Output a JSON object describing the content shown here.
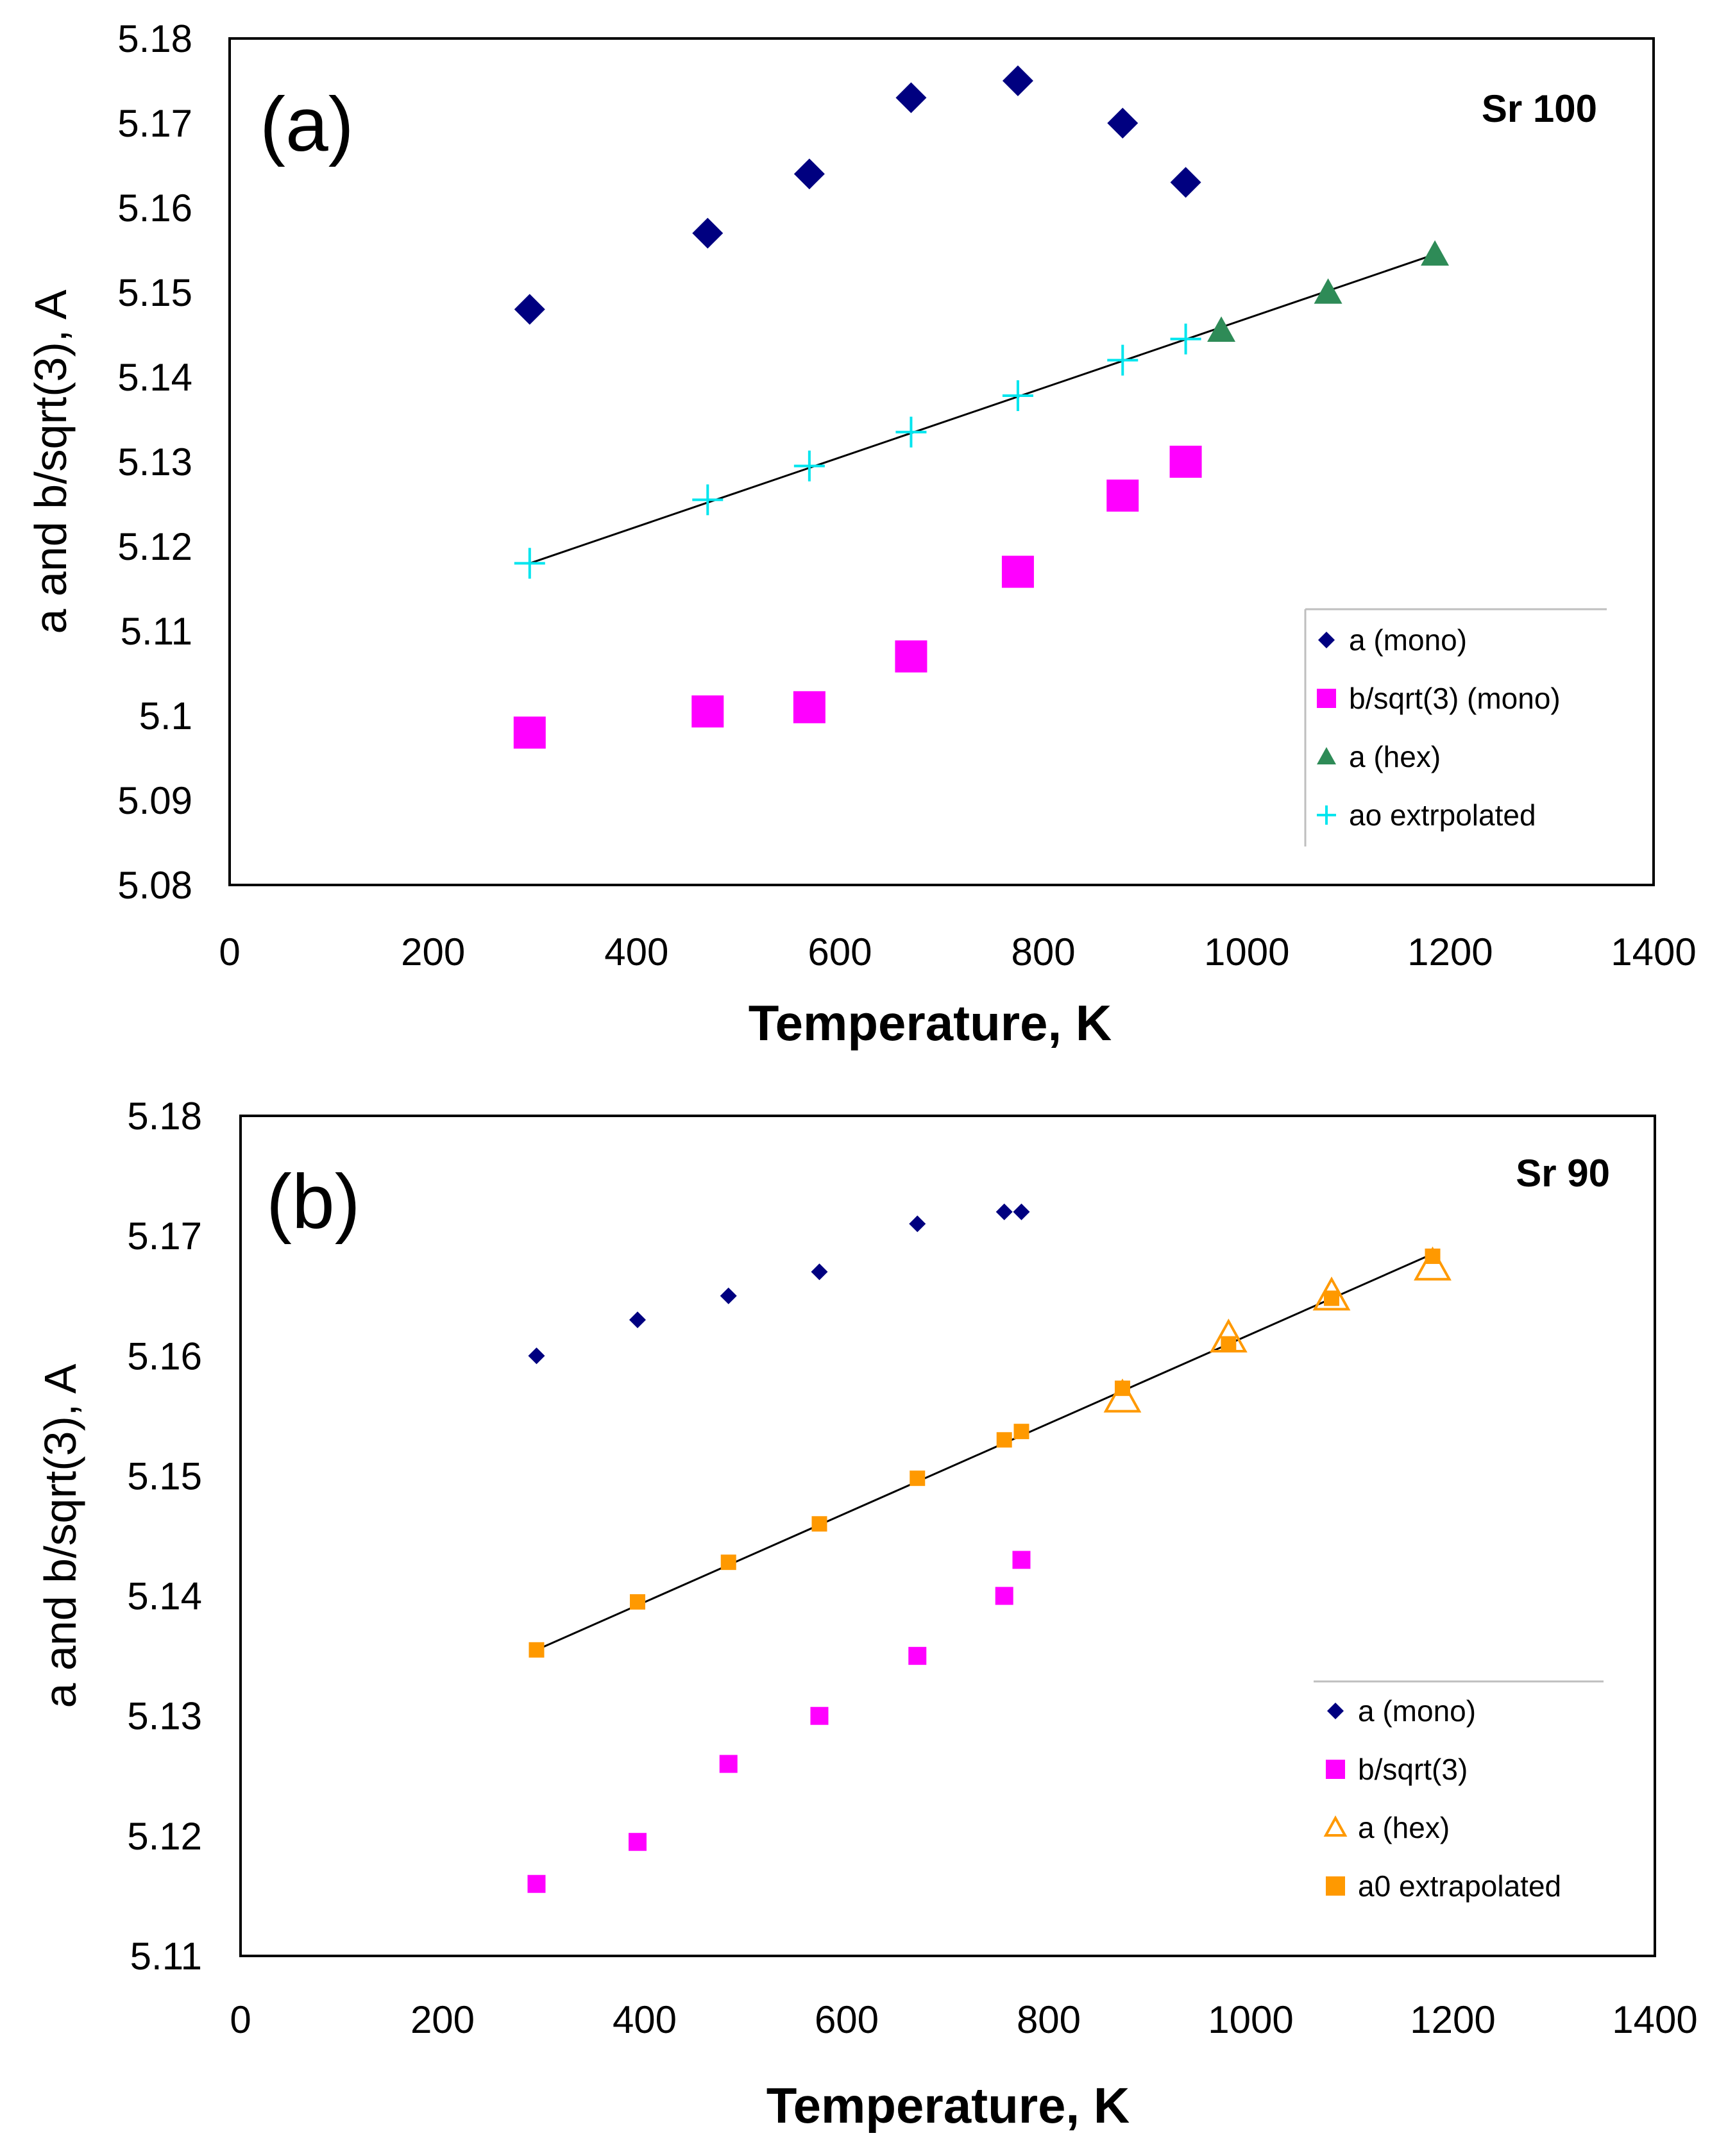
{
  "chart_data": [
    {
      "type": "scatter",
      "panel_label": "(a)",
      "title": "Sr 100",
      "xlabel": "Temperature,  K",
      "ylabel": "a and b/sqrt(3),  A",
      "xlim": [
        0,
        1400
      ],
      "ylim": [
        5.08,
        5.18
      ],
      "xticks": [
        0,
        200,
        400,
        600,
        800,
        1000,
        1200,
        1400
      ],
      "xtick_labels": [
        "0",
        "200",
        "400",
        "600",
        "800",
        "1000",
        "1200",
        "1400"
      ],
      "yticks": [
        5.08,
        5.09,
        5.1,
        5.11,
        5.12,
        5.13,
        5.14,
        5.15,
        5.16,
        5.17,
        5.18
      ],
      "ytick_labels": [
        "5.08",
        "5.09",
        "5.1",
        "5.11",
        "5.12",
        "5.13",
        "5.14",
        "5.15",
        "5.16",
        "5.17",
        "5.18"
      ],
      "legend_position": "bottom-right",
      "series": [
        {
          "name": "a (mono)",
          "marker": "diamond",
          "color": "#000080",
          "x": [
            295,
            470,
            570,
            670,
            775,
            878,
            940
          ],
          "y": [
            5.148,
            5.157,
            5.164,
            5.173,
            5.175,
            5.17,
            5.163
          ]
        },
        {
          "name": "b/sqrt(3) (mono)",
          "marker": "square",
          "color": "#ff00ff",
          "x": [
            295,
            470,
            570,
            670,
            775,
            878,
            940
          ],
          "y": [
            5.098,
            5.1005,
            5.101,
            5.107,
            5.117,
            5.126,
            5.13
          ]
        },
        {
          "name": "a (hex)",
          "marker": "triangle",
          "color": "#2e8b57",
          "x": [
            975,
            1080,
            1185
          ],
          "y": [
            5.1455,
            5.15,
            5.1545
          ]
        },
        {
          "name": "ao extrpolated",
          "marker": "plus",
          "color": "#00e5ee",
          "x": [
            295,
            470,
            570,
            670,
            775,
            878,
            940
          ],
          "y": [
            5.118,
            5.1255,
            5.1295,
            5.1335,
            5.1378,
            5.142,
            5.1445
          ]
        }
      ],
      "fit_line": {
        "x": [
          295,
          1185
        ],
        "y": [
          5.118,
          5.1545
        ]
      }
    },
    {
      "type": "scatter",
      "panel_label": "(b)",
      "title": "Sr 90",
      "xlabel": "Temperature,  K",
      "ylabel": "a and b/sqrt(3),  A",
      "xlim": [
        0,
        1400
      ],
      "ylim": [
        5.11,
        5.18
      ],
      "xticks": [
        0,
        200,
        400,
        600,
        800,
        1000,
        1200,
        1400
      ],
      "xtick_labels": [
        "0",
        "200",
        "400",
        "600",
        "800",
        "1000",
        "1200",
        "1400"
      ],
      "yticks": [
        5.11,
        5.12,
        5.13,
        5.14,
        5.15,
        5.16,
        5.17,
        5.18
      ],
      "ytick_labels": [
        "5.11",
        "5.12",
        "5.13",
        "5.14",
        "5.15",
        "5.16",
        "5.17",
        "5.18"
      ],
      "legend_position": "bottom-right",
      "series": [
        {
          "name": "a (mono)",
          "marker": "diamond",
          "color": "#000080",
          "x": [
            293,
            393,
            483,
            573,
            670,
            756,
            773
          ],
          "y": [
            5.16,
            5.163,
            5.165,
            5.167,
            5.171,
            5.172,
            5.172
          ]
        },
        {
          "name": "b/sqrt(3)",
          "marker": "square",
          "color": "#ff00ff",
          "x": [
            293,
            393,
            483,
            573,
            670,
            756,
            773
          ],
          "y": [
            5.116,
            5.1195,
            5.126,
            5.13,
            5.135,
            5.14,
            5.143
          ]
        },
        {
          "name": "a (hex)",
          "marker": "triangle-open",
          "color": "#ff9900",
          "x": [
            873,
            978,
            1080,
            1180
          ],
          "y": [
            5.1565,
            5.1615,
            5.165,
            5.1675
          ]
        },
        {
          "name": "a0 extrapolated",
          "marker": "square-small",
          "color": "#ff9900",
          "x": [
            293,
            393,
            483,
            573,
            670,
            756,
            773,
            873,
            978,
            1080,
            1180
          ],
          "y": [
            5.1355,
            5.1395,
            5.1428,
            5.146,
            5.1498,
            5.153,
            5.1537,
            5.1573,
            5.161,
            5.1648,
            5.1683
          ]
        }
      ],
      "fit_line": {
        "x": [
          293,
          1180
        ],
        "y": [
          5.1355,
          5.1685
        ]
      }
    }
  ]
}
